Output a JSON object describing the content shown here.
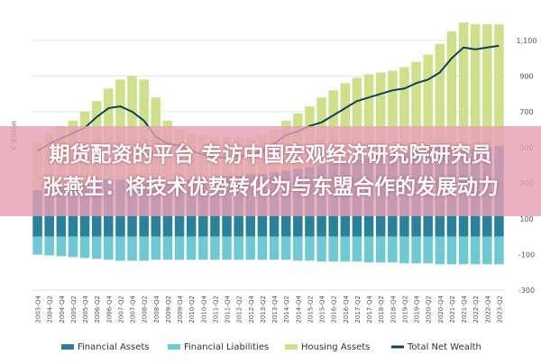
{
  "chart_data": {
    "type": "bar",
    "y_label": "€ Billion",
    "categories": [
      "2003-Q4",
      "2004-Q2",
      "2004-Q4",
      "2005-Q2",
      "2005-Q4",
      "2006-Q2",
      "2006-Q4",
      "2007-Q2",
      "2007-Q4",
      "2008-Q2",
      "2008-Q4",
      "2009-Q2",
      "2009-Q4",
      "2010-Q2",
      "2010-Q4",
      "2011-Q2",
      "2011-Q4",
      "2012-Q2",
      "2012-Q4",
      "2013-Q2",
      "2013-Q4",
      "2014-Q2",
      "2014-Q4",
      "2015-Q2",
      "2015-Q4",
      "2016-Q2",
      "2016-Q4",
      "2017-Q2",
      "2017-Q4",
      "2018-Q2",
      "2018-Q4",
      "2019-Q2",
      "2019-Q4",
      "2020-Q2",
      "2020-Q4",
      "2021-Q2",
      "2021-Q4",
      "2022-Q2",
      "2022-Q4",
      "2023-Q2"
    ],
    "series": [
      {
        "name": "Financial Assets",
        "color": "#2a8199",
        "values": [
          260,
          270,
          280,
          290,
          300,
          310,
          320,
          320,
          310,
          300,
          290,
          300,
          310,
          320,
          320,
          330,
          340,
          340,
          350,
          350,
          360,
          370,
          380,
          390,
          400,
          410,
          420,
          430,
          440,
          450,
          460,
          470,
          480,
          500,
          510,
          500,
          480,
          490,
          500,
          510
        ]
      },
      {
        "name": "Financial Liabilities",
        "color": "#6ec9d3",
        "values": [
          -100,
          -105,
          -110,
          -115,
          -120,
          -125,
          -130,
          -135,
          -135,
          -135,
          -130,
          -130,
          -130,
          -130,
          -130,
          -130,
          -130,
          -130,
          -130,
          -130,
          -130,
          -130,
          -135,
          -135,
          -140,
          -140,
          -140,
          -140,
          -145,
          -145,
          -145,
          -150,
          -150,
          -150,
          -155,
          -155,
          -155,
          -155,
          -155,
          -155
        ]
      },
      {
        "name": "Housing Assets",
        "color": "#cfe08a",
        "values": [
          270,
          310,
          340,
          360,
          400,
          450,
          510,
          560,
          590,
          580,
          490,
          350,
          290,
          260,
          250,
          230,
          220,
          220,
          210,
          220,
          240,
          280,
          310,
          340,
          380,
          410,
          440,
          460,
          470,
          470,
          470,
          480,
          500,
          520,
          570,
          650,
          720,
          700,
          690,
          680
        ]
      },
      {
        "name": "Total Net Wealth",
        "color": "#123f5a",
        "line": true,
        "values": [
          480,
          520,
          550,
          580,
          610,
          670,
          720,
          730,
          700,
          650,
          560,
          520,
          510,
          480,
          460,
          450,
          440,
          450,
          460,
          480,
          520,
          570,
          590,
          620,
          640,
          680,
          720,
          760,
          780,
          800,
          820,
          830,
          860,
          880,
          920,
          1000,
          1060,
          1050,
          1060,
          1070
        ]
      }
    ],
    "ylim": [
      -300,
      1200
    ],
    "yticks": [
      -300,
      -100,
      100,
      300,
      500,
      700,
      900,
      {
        "value": 1100,
        "label": "1,100"
      }
    ],
    "grid": true
  },
  "banner": {
    "lines": [
      "期货配资的平台 专访中国宏观经济研究院研究员",
      "张燕生：将技术优势转化为与东盟合作的发展动力"
    ]
  }
}
